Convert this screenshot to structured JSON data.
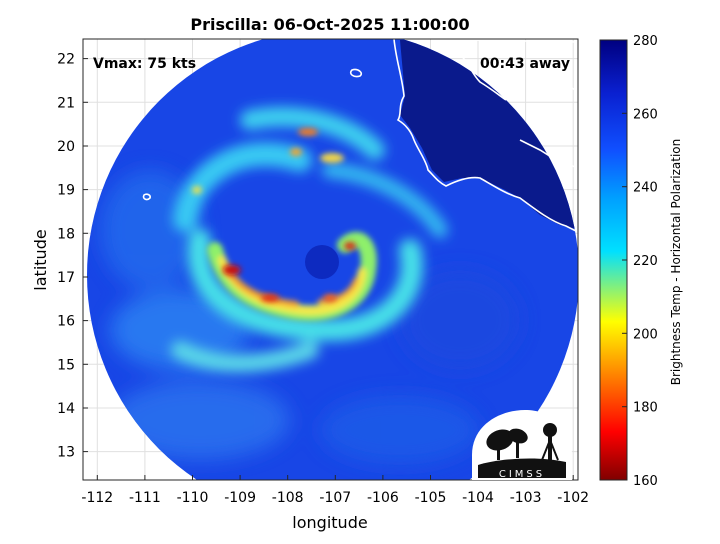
{
  "title": "Priscilla: 06-Oct-2025 11:00:00",
  "annotations": {
    "vmax": "Vmax: 75 kts",
    "time_away": "00:43 away"
  },
  "axes": {
    "xlabel": "longitude",
    "ylabel": "latitude",
    "xlim": [
      -112.3,
      -101.9
    ],
    "ylim": [
      12.35,
      22.45
    ],
    "xticks": [
      -112,
      -111,
      -110,
      -109,
      -108,
      -107,
      -106,
      -105,
      -104,
      -103,
      -102
    ],
    "yticks": [
      13,
      14,
      15,
      16,
      17,
      18,
      19,
      20,
      21,
      22
    ],
    "grid": true
  },
  "colorbar": {
    "label": "Brightness Temp - Horizontal Polarization",
    "min": 160,
    "max": 280,
    "ticks": [
      160,
      180,
      200,
      220,
      240,
      260,
      280
    ],
    "colormap": "jet"
  },
  "storm_center": {
    "lon": -107.3,
    "lat": 17.1
  },
  "logo": {
    "text": "CIMSS"
  },
  "colors": {
    "land": "#0a1a8c",
    "coast": "#ffffff",
    "background_scene": "#1846e6"
  }
}
